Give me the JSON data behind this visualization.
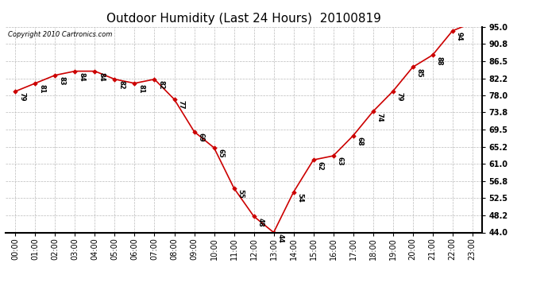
{
  "title": "Outdoor Humidity (Last 24 Hours)  20100819",
  "copyright": "Copyright 2010 Cartronics.com",
  "x_labels": [
    "00:00",
    "01:00",
    "02:00",
    "03:00",
    "04:00",
    "05:00",
    "06:00",
    "07:00",
    "08:00",
    "09:00",
    "10:00",
    "11:00",
    "12:00",
    "13:00",
    "14:00",
    "15:00",
    "16:00",
    "17:00",
    "18:00",
    "19:00",
    "20:00",
    "21:00",
    "22:00",
    "23:00"
  ],
  "y_values": [
    79,
    81,
    83,
    84,
    84,
    82,
    81,
    82,
    77,
    69,
    65,
    55,
    48,
    44,
    54,
    62,
    63,
    68,
    74,
    79,
    85,
    88,
    94,
    96
  ],
  "y_ticks": [
    44.0,
    48.2,
    52.5,
    56.8,
    61.0,
    65.2,
    69.5,
    73.8,
    78.0,
    82.2,
    86.5,
    90.8,
    95.0
  ],
  "y_tick_labels": [
    "44.0",
    "48.2",
    "52.5",
    "56.8",
    "61.0",
    "65.2",
    "69.5",
    "73.8",
    "78.0",
    "82.2",
    "86.5",
    "90.8",
    "95.0"
  ],
  "line_color": "#cc0000",
  "marker_color": "#cc0000",
  "bg_color": "#ffffff",
  "grid_color": "#bbbbbb",
  "title_fontsize": 11,
  "copyright_fontsize": 6,
  "label_fontsize": 6,
  "tick_fontsize": 7,
  "ylim_min": 44.0,
  "ylim_max": 95.0
}
